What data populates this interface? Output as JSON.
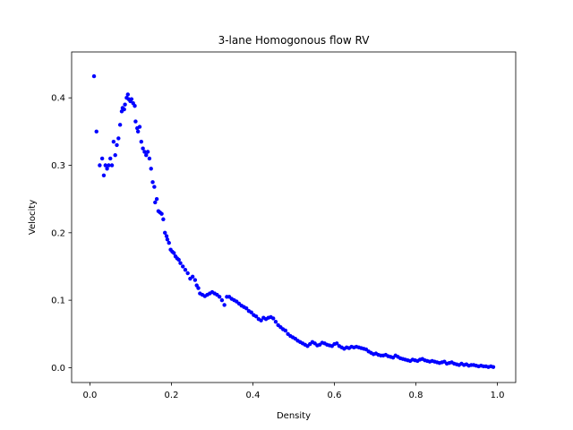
{
  "chart_data": {
    "type": "scatter",
    "title": "3-lane Homogonous flow RV",
    "xlabel": "Density",
    "ylabel": "Velocity",
    "xlim": [
      -0.045,
      1.045
    ],
    "ylim": [
      -0.022,
      0.468
    ],
    "xticks": [
      0.0,
      0.2,
      0.4,
      0.6,
      0.8,
      1.0
    ],
    "xtick_labels": [
      "0.0",
      "0.2",
      "0.4",
      "0.6",
      "0.8",
      "1.0"
    ],
    "yticks": [
      0.0,
      0.1,
      0.2,
      0.3,
      0.4
    ],
    "ytick_labels": [
      "0.0",
      "0.1",
      "0.2",
      "0.3",
      "0.4"
    ],
    "grid": false,
    "legend": "none",
    "marker_color": "#0000ff",
    "series": [
      {
        "x": [
          0.01,
          0.016,
          0.024,
          0.03,
          0.034,
          0.038,
          0.042,
          0.046,
          0.05,
          0.054,
          0.058,
          0.062,
          0.066,
          0.07,
          0.074,
          0.078,
          0.08,
          0.084,
          0.086,
          0.09,
          0.093,
          0.095,
          0.099,
          0.102,
          0.106,
          0.11,
          0.112,
          0.116,
          0.118,
          0.122,
          0.126,
          0.13,
          0.134,
          0.138,
          0.142,
          0.146,
          0.15,
          0.154,
          0.158,
          0.16,
          0.164,
          0.168,
          0.172,
          0.176,
          0.18,
          0.184,
          0.188,
          0.19,
          0.194,
          0.198,
          0.202,
          0.206,
          0.21,
          0.214,
          0.218,
          0.222,
          0.228,
          0.234,
          0.24,
          0.246,
          0.252,
          0.258,
          0.262,
          0.266,
          0.27,
          0.276,
          0.282,
          0.288,
          0.294,
          0.3,
          0.306,
          0.312,
          0.318,
          0.324,
          0.33,
          0.336,
          0.342,
          0.348,
          0.354,
          0.36,
          0.366,
          0.372,
          0.378,
          0.384,
          0.39,
          0.396,
          0.402,
          0.408,
          0.414,
          0.42,
          0.426,
          0.432,
          0.438,
          0.444,
          0.45,
          0.456,
          0.462,
          0.468,
          0.474,
          0.48,
          0.486,
          0.492,
          0.498,
          0.504,
          0.51,
          0.516,
          0.522,
          0.528,
          0.534,
          0.54,
          0.546,
          0.552,
          0.558,
          0.564,
          0.57,
          0.576,
          0.582,
          0.588,
          0.594,
          0.6,
          0.606,
          0.612,
          0.618,
          0.624,
          0.63,
          0.636,
          0.642,
          0.648,
          0.654,
          0.66,
          0.666,
          0.672,
          0.678,
          0.684,
          0.69,
          0.696,
          0.702,
          0.708,
          0.714,
          0.72,
          0.726,
          0.732,
          0.738,
          0.744,
          0.75,
          0.756,
          0.762,
          0.768,
          0.774,
          0.78,
          0.786,
          0.792,
          0.798,
          0.804,
          0.81,
          0.816,
          0.822,
          0.828,
          0.834,
          0.84,
          0.846,
          0.852,
          0.858,
          0.864,
          0.87,
          0.876,
          0.882,
          0.888,
          0.894,
          0.9,
          0.906,
          0.912,
          0.918,
          0.924,
          0.93,
          0.936,
          0.942,
          0.948,
          0.954,
          0.96,
          0.966,
          0.972,
          0.978,
          0.984,
          0.99
        ],
        "y": [
          0.432,
          0.35,
          0.3,
          0.31,
          0.285,
          0.3,
          0.295,
          0.3,
          0.31,
          0.3,
          0.335,
          0.315,
          0.33,
          0.34,
          0.36,
          0.38,
          0.385,
          0.383,
          0.39,
          0.4,
          0.405,
          0.398,
          0.395,
          0.398,
          0.392,
          0.388,
          0.365,
          0.355,
          0.35,
          0.357,
          0.335,
          0.325,
          0.32,
          0.315,
          0.32,
          0.31,
          0.295,
          0.275,
          0.268,
          0.245,
          0.25,
          0.232,
          0.23,
          0.228,
          0.22,
          0.2,
          0.195,
          0.19,
          0.185,
          0.175,
          0.172,
          0.17,
          0.165,
          0.162,
          0.16,
          0.155,
          0.15,
          0.145,
          0.14,
          0.132,
          0.135,
          0.13,
          0.122,
          0.118,
          0.11,
          0.108,
          0.106,
          0.108,
          0.11,
          0.112,
          0.11,
          0.108,
          0.105,
          0.1,
          0.093,
          0.105,
          0.105,
          0.102,
          0.1,
          0.098,
          0.095,
          0.092,
          0.09,
          0.088,
          0.084,
          0.082,
          0.078,
          0.076,
          0.072,
          0.07,
          0.074,
          0.072,
          0.074,
          0.075,
          0.073,
          0.068,
          0.063,
          0.06,
          0.057,
          0.055,
          0.05,
          0.047,
          0.045,
          0.043,
          0.04,
          0.038,
          0.036,
          0.034,
          0.032,
          0.035,
          0.038,
          0.036,
          0.033,
          0.034,
          0.037,
          0.036,
          0.034,
          0.033,
          0.032,
          0.035,
          0.036,
          0.032,
          0.03,
          0.028,
          0.03,
          0.029,
          0.031,
          0.03,
          0.031,
          0.03,
          0.029,
          0.028,
          0.027,
          0.024,
          0.022,
          0.02,
          0.021,
          0.019,
          0.018,
          0.018,
          0.019,
          0.017,
          0.016,
          0.015,
          0.018,
          0.016,
          0.014,
          0.013,
          0.012,
          0.011,
          0.01,
          0.012,
          0.011,
          0.01,
          0.012,
          0.013,
          0.011,
          0.01,
          0.009,
          0.01,
          0.009,
          0.008,
          0.007,
          0.008,
          0.009,
          0.006,
          0.007,
          0.008,
          0.006,
          0.005,
          0.004,
          0.006,
          0.004,
          0.005,
          0.003,
          0.004,
          0.004,
          0.003,
          0.002,
          0.003,
          0.002,
          0.002,
          0.001,
          0.002,
          0.001
        ]
      }
    ]
  }
}
